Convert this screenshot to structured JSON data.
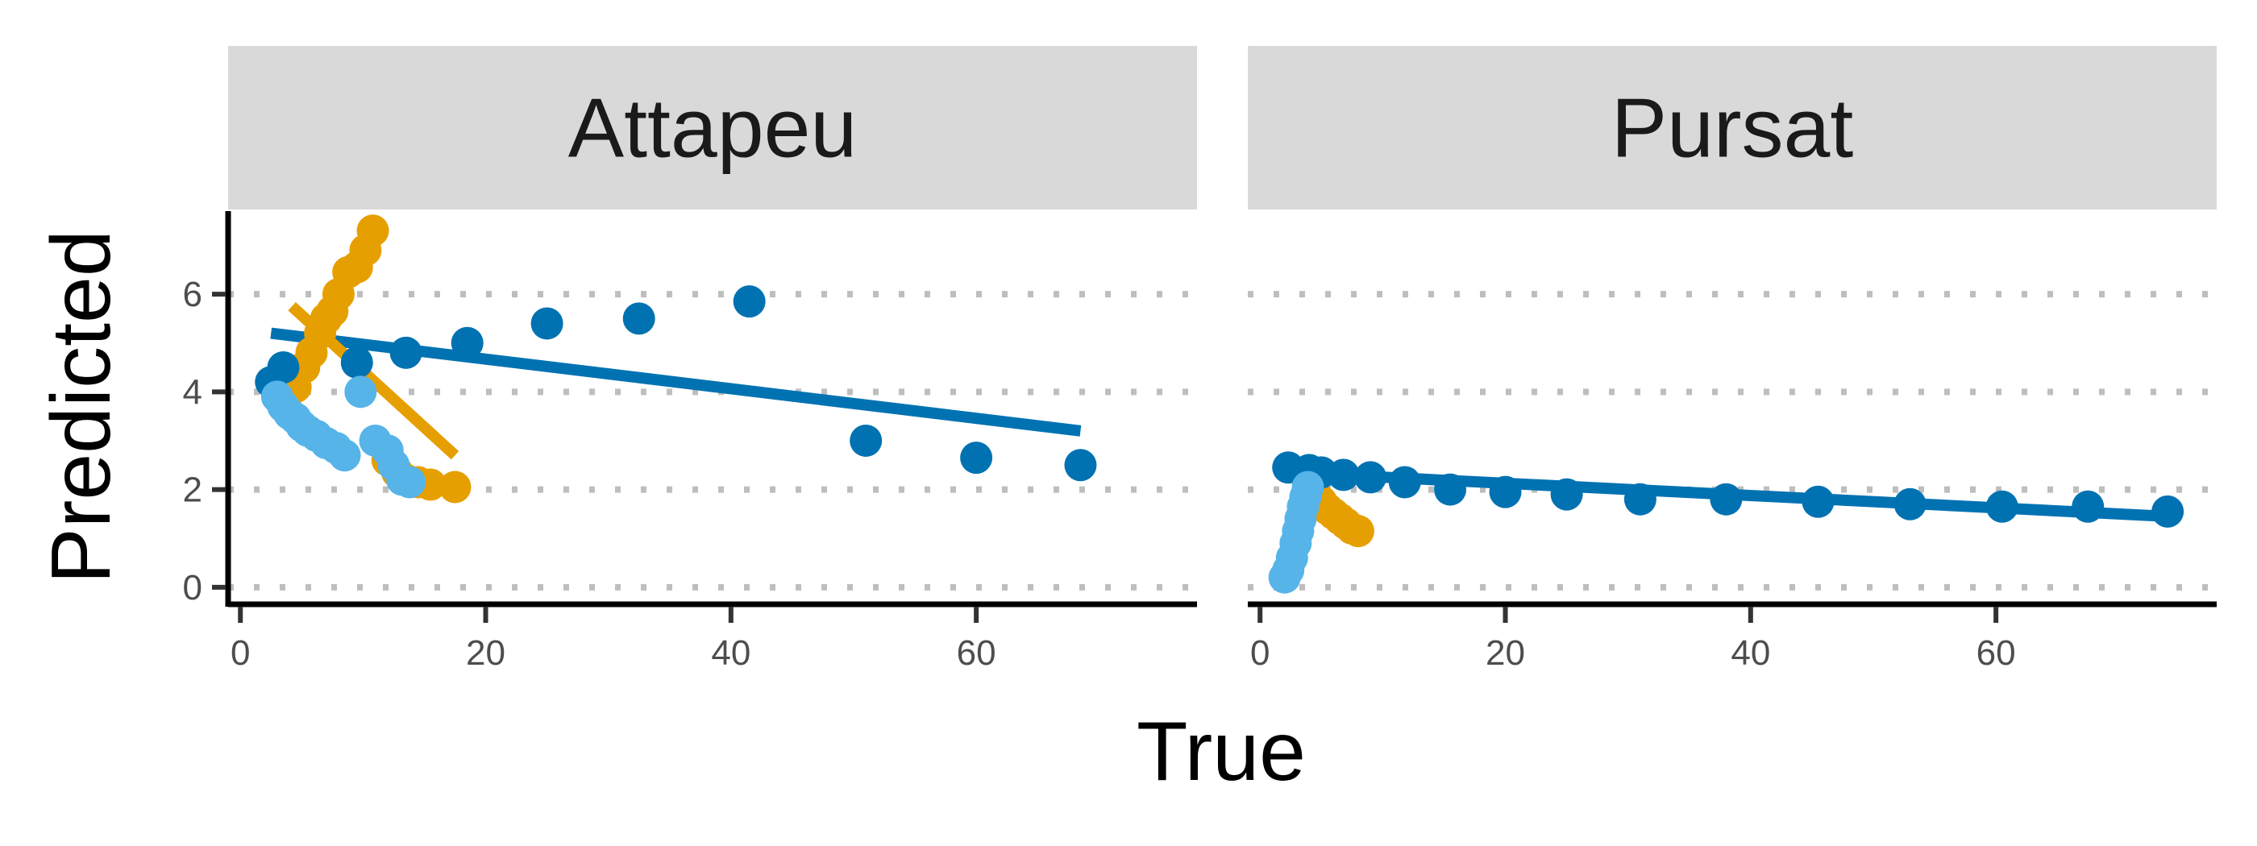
{
  "chart_data": {
    "type": "scatter",
    "xlabel": "True",
    "ylabel": "Predicted",
    "xlim": [
      -1,
      78
    ],
    "ylim": [
      -0.3,
      7.7
    ],
    "x_ticks": [
      0,
      20,
      40,
      60
    ],
    "y_ticks": [
      0,
      2,
      4,
      6
    ],
    "grid": "horizontal dotted",
    "colors": {
      "dark_blue": "#0072B2",
      "orange": "#E69F00",
      "light_blue": "#56B4E9",
      "strip": "#D9D9D9",
      "grid": "#BEBEBE"
    },
    "panels": [
      {
        "title": "Attapeu",
        "series": [
          {
            "color": "#0072B2",
            "points": [
              [
                2.5,
                4.2
              ],
              [
                3.5,
                4.5
              ],
              [
                9.5,
                4.6
              ],
              [
                13.5,
                4.8
              ],
              [
                18.5,
                5.0
              ],
              [
                25,
                5.4
              ],
              [
                32.5,
                5.5
              ],
              [
                41.5,
                5.85
              ],
              [
                51,
                3.0
              ],
              [
                60,
                2.65
              ],
              [
                68.5,
                2.5
              ]
            ],
            "trend": [
              [
                2.5,
                5.2
              ],
              [
                68.5,
                3.2
              ]
            ]
          },
          {
            "color": "#E69F00",
            "points": [
              [
                4.5,
                4.1
              ],
              [
                5.2,
                4.5
              ],
              [
                5.8,
                4.8
              ],
              [
                6.5,
                5.2
              ],
              [
                7.0,
                5.5
              ],
              [
                7.5,
                5.65
              ],
              [
                8.0,
                6.0
              ],
              [
                8.8,
                6.45
              ],
              [
                9.5,
                6.55
              ],
              [
                10.2,
                6.9
              ],
              [
                10.8,
                7.3
              ],
              [
                12.0,
                2.6
              ],
              [
                12.8,
                2.35
              ],
              [
                13.5,
                2.2
              ],
              [
                14.5,
                2.15
              ],
              [
                15.5,
                2.1
              ],
              [
                17.5,
                2.05
              ]
            ],
            "trend": [
              [
                4.2,
                5.75
              ],
              [
                17.5,
                2.7
              ]
            ]
          },
          {
            "color": "#56B4E9",
            "points": [
              [
                3.0,
                3.9
              ],
              [
                3.5,
                3.7
              ],
              [
                4.0,
                3.55
              ],
              [
                4.5,
                3.45
              ],
              [
                5.0,
                3.3
              ],
              [
                5.5,
                3.2
              ],
              [
                6.2,
                3.1
              ],
              [
                7.0,
                2.95
              ],
              [
                7.8,
                2.85
              ],
              [
                8.5,
                2.7
              ],
              [
                9.8,
                4.0
              ],
              [
                11.0,
                3.0
              ],
              [
                12.0,
                2.8
              ],
              [
                12.5,
                2.5
              ],
              [
                13.2,
                2.2
              ],
              [
                13.8,
                2.15
              ]
            ]
          }
        ]
      },
      {
        "title": "Pursat",
        "series": [
          {
            "color": "#0072B2",
            "points": [
              [
                2.3,
                2.45
              ],
              [
                4.0,
                2.4
              ],
              [
                5.0,
                2.35
              ],
              [
                6.8,
                2.3
              ],
              [
                9.0,
                2.25
              ],
              [
                11.8,
                2.15
              ],
              [
                15.5,
                2.0
              ],
              [
                20.0,
                1.95
              ],
              [
                25.0,
                1.9
              ],
              [
                31.0,
                1.8
              ],
              [
                38.0,
                1.8
              ],
              [
                45.5,
                1.75
              ],
              [
                53.0,
                1.7
              ],
              [
                60.5,
                1.65
              ],
              [
                67.5,
                1.65
              ],
              [
                74.0,
                1.55
              ]
            ],
            "trend": [
              [
                2.3,
                2.35
              ],
              [
                74.0,
                1.45
              ]
            ]
          },
          {
            "color": "#E69F00",
            "points": [
              [
                4.5,
                1.9
              ],
              [
                5.0,
                1.75
              ],
              [
                5.5,
                1.6
              ],
              [
                6.0,
                1.5
              ],
              [
                6.5,
                1.4
              ],
              [
                7.0,
                1.3
              ],
              [
                7.5,
                1.2
              ],
              [
                8.0,
                1.15
              ]
            ]
          },
          {
            "color": "#56B4E9",
            "points": [
              [
                2.0,
                0.2
              ],
              [
                2.3,
                0.35
              ],
              [
                2.6,
                0.6
              ],
              [
                2.9,
                0.9
              ],
              [
                3.1,
                1.15
              ],
              [
                3.3,
                1.4
              ],
              [
                3.5,
                1.65
              ],
              [
                3.7,
                1.85
              ],
              [
                3.9,
                2.05
              ]
            ]
          }
        ]
      }
    ]
  }
}
